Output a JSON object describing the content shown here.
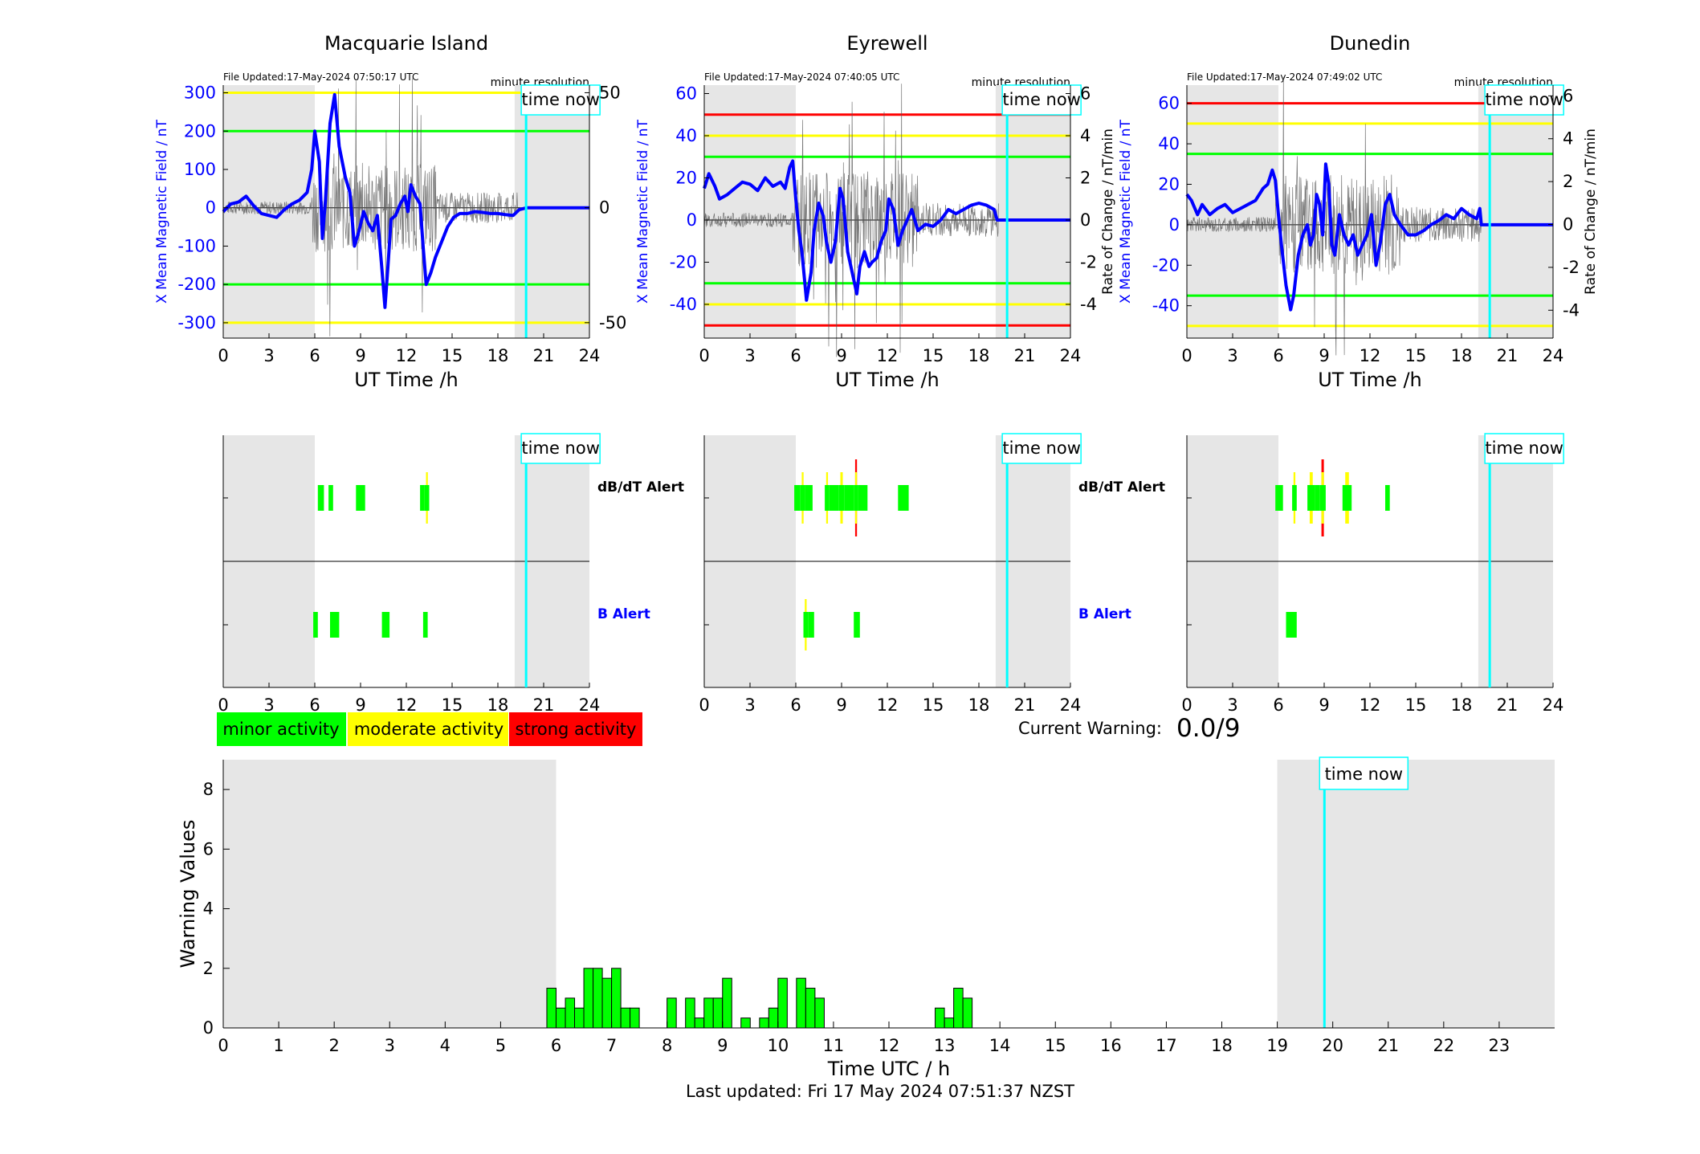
{
  "colors": {
    "shade": "#e6e6e6",
    "time_now": "#00ffff",
    "x_field": "#0000ff",
    "rate": "#000000",
    "green": "#00ff00",
    "yellow": "#ffff00",
    "red": "#ff0000",
    "axis": "#000000"
  },
  "common": {
    "file_label_prefix": "File Updated:",
    "resolution_label": "minute resolution",
    "time_now_label": "time now",
    "x_axis_title": "UT Time /h",
    "x_ticks": [
      0,
      3,
      6,
      9,
      12,
      15,
      18,
      21,
      24
    ],
    "time_now_hour": 19.85,
    "night_shade": [
      [
        0,
        6
      ],
      [
        19.1,
        24
      ]
    ],
    "y_left_label": "X Mean Magnetic Field / nT",
    "y_right_label": "Rate of Change / nT/min"
  },
  "stations": [
    {
      "name": "Macquarie Island",
      "file_updated": "17-May-2024 07:50:17 UTC",
      "show_right_label": false,
      "y_left": {
        "min": -340,
        "max": 320,
        "ticks": [
          -300,
          -200,
          -100,
          0,
          100,
          200,
          300
        ]
      },
      "y_right": {
        "min": -56.7,
        "max": 53.3,
        "ticks": [
          -50,
          0,
          50
        ]
      },
      "thresholds": [
        {
          "value": 300,
          "color": "yellow"
        },
        {
          "value": 200,
          "color": "green"
        },
        {
          "value": -200,
          "color": "green"
        },
        {
          "value": -300,
          "color": "yellow"
        }
      ],
      "x_series": [
        [
          0,
          -10
        ],
        [
          0.5,
          10
        ],
        [
          1,
          15
        ],
        [
          1.5,
          30
        ],
        [
          2,
          5
        ],
        [
          2.5,
          -15
        ],
        [
          3,
          -20
        ],
        [
          3.5,
          -25
        ],
        [
          4,
          -5
        ],
        [
          4.5,
          10
        ],
        [
          5,
          20
        ],
        [
          5.5,
          40
        ],
        [
          5.8,
          100
        ],
        [
          6,
          200
        ],
        [
          6.3,
          120
        ],
        [
          6.5,
          -80
        ],
        [
          6.7,
          20
        ],
        [
          7,
          220
        ],
        [
          7.3,
          295
        ],
        [
          7.6,
          160
        ],
        [
          8,
          80
        ],
        [
          8.3,
          40
        ],
        [
          8.6,
          -100
        ],
        [
          8.9,
          -60
        ],
        [
          9.2,
          -10
        ],
        [
          9.5,
          -40
        ],
        [
          9.8,
          -60
        ],
        [
          10.1,
          -20
        ],
        [
          10.4,
          -160
        ],
        [
          10.6,
          -260
        ],
        [
          10.8,
          -150
        ],
        [
          11,
          -30
        ],
        [
          11.3,
          -20
        ],
        [
          11.6,
          10
        ],
        [
          11.9,
          30
        ],
        [
          12.1,
          -10
        ],
        [
          12.3,
          60
        ],
        [
          12.6,
          30
        ],
        [
          12.9,
          10
        ],
        [
          13.1,
          -100
        ],
        [
          13.3,
          -200
        ],
        [
          13.6,
          -170
        ],
        [
          13.9,
          -130
        ],
        [
          14.3,
          -90
        ],
        [
          14.7,
          -50
        ],
        [
          15.1,
          -25
        ],
        [
          15.5,
          -15
        ],
        [
          16,
          -15
        ],
        [
          16.5,
          -10
        ],
        [
          17,
          -12
        ],
        [
          17.5,
          -15
        ],
        [
          18,
          -15
        ],
        [
          18.5,
          -18
        ],
        [
          19,
          -20
        ],
        [
          19.4,
          -5
        ],
        [
          19.9,
          0
        ],
        [
          24,
          0
        ]
      ],
      "d_bar": [
        [
          6.2,
          6.6,
          "g"
        ],
        [
          6.9,
          7.2,
          "g"
        ],
        [
          8.7,
          9.3,
          "g"
        ],
        [
          12.9,
          13.2,
          "g"
        ],
        [
          13.2,
          13.5,
          "gy"
        ]
      ],
      "b_bar": [
        [
          5.9,
          6.2,
          "g"
        ],
        [
          7.0,
          7.6,
          "g"
        ],
        [
          10.4,
          10.9,
          "g"
        ],
        [
          13.1,
          13.4,
          "g"
        ]
      ]
    },
    {
      "name": "Eyrewell",
      "file_updated": "17-May-2024 07:40:05 UTC",
      "show_right_label": true,
      "y_left": {
        "min": -56,
        "max": 64,
        "ticks": [
          -40,
          -20,
          0,
          20,
          40,
          60
        ]
      },
      "y_right": {
        "min": -5.6,
        "max": 6.4,
        "ticks": [
          -4,
          -2,
          0,
          2,
          4,
          6
        ]
      },
      "thresholds": [
        {
          "value": 50,
          "color": "red"
        },
        {
          "value": 40,
          "color": "yellow"
        },
        {
          "value": 30,
          "color": "green"
        },
        {
          "value": -30,
          "color": "green"
        },
        {
          "value": -40,
          "color": "yellow"
        },
        {
          "value": -50,
          "color": "red"
        }
      ],
      "x_series": [
        [
          0,
          15
        ],
        [
          0.3,
          22
        ],
        [
          0.7,
          16
        ],
        [
          1,
          10
        ],
        [
          1.5,
          12
        ],
        [
          2,
          15
        ],
        [
          2.5,
          18
        ],
        [
          3,
          17
        ],
        [
          3.5,
          14
        ],
        [
          4,
          20
        ],
        [
          4.5,
          16
        ],
        [
          5,
          18
        ],
        [
          5.3,
          15
        ],
        [
          5.6,
          25
        ],
        [
          5.8,
          28
        ],
        [
          6,
          10
        ],
        [
          6.2,
          -5
        ],
        [
          6.4,
          -15
        ],
        [
          6.7,
          -38
        ],
        [
          7,
          -25
        ],
        [
          7.2,
          -5
        ],
        [
          7.5,
          8
        ],
        [
          7.8,
          2
        ],
        [
          8,
          -10
        ],
        [
          8.3,
          -20
        ],
        [
          8.6,
          -10
        ],
        [
          8.9,
          15
        ],
        [
          9.1,
          10
        ],
        [
          9.4,
          -15
        ],
        [
          9.7,
          -25
        ],
        [
          10,
          -35
        ],
        [
          10.2,
          -22
        ],
        [
          10.5,
          -15
        ],
        [
          10.8,
          -22
        ],
        [
          11,
          -20
        ],
        [
          11.3,
          -18
        ],
        [
          11.6,
          -10
        ],
        [
          11.9,
          -5
        ],
        [
          12.1,
          10
        ],
        [
          12.4,
          5
        ],
        [
          12.7,
          -12
        ],
        [
          13,
          -5
        ],
        [
          13.3,
          0
        ],
        [
          13.6,
          5
        ],
        [
          14,
          -5
        ],
        [
          14.5,
          -2
        ],
        [
          15,
          -3
        ],
        [
          15.5,
          0
        ],
        [
          16,
          5
        ],
        [
          16.5,
          3
        ],
        [
          17,
          5
        ],
        [
          17.5,
          7
        ],
        [
          18,
          8
        ],
        [
          18.5,
          7
        ],
        [
          19,
          5
        ],
        [
          19.2,
          0
        ],
        [
          24,
          0
        ]
      ],
      "d_bar": [
        [
          5.9,
          6.3,
          "g"
        ],
        [
          6.3,
          6.6,
          "gy"
        ],
        [
          6.6,
          7.1,
          "g"
        ],
        [
          7.9,
          8.2,
          "gy"
        ],
        [
          8.2,
          8.8,
          "g"
        ],
        [
          8.8,
          9.2,
          "gy"
        ],
        [
          9.2,
          9.8,
          "g"
        ],
        [
          9.8,
          10.1,
          "gyr"
        ],
        [
          10.1,
          10.7,
          "g"
        ],
        [
          12.7,
          13.4,
          "g"
        ]
      ],
      "b_bar": [
        [
          6.5,
          6.8,
          "gy"
        ],
        [
          6.8,
          7.2,
          "g"
        ],
        [
          9.8,
          10.2,
          "g"
        ]
      ]
    },
    {
      "name": "Dunedin",
      "file_updated": "17-May-2024 07:49:02 UTC",
      "show_right_label": true,
      "y_left": {
        "min": -56,
        "max": 69,
        "ticks": [
          -40,
          -20,
          0,
          20,
          40,
          60
        ]
      },
      "y_right": {
        "min": -5.3,
        "max": 6.5,
        "ticks": [
          -4,
          -2,
          0,
          2,
          4,
          6
        ]
      },
      "thresholds": [
        {
          "value": 60,
          "color": "red"
        },
        {
          "value": 50,
          "color": "yellow"
        },
        {
          "value": 35,
          "color": "green"
        },
        {
          "value": -35,
          "color": "green"
        },
        {
          "value": -50,
          "color": "yellow"
        }
      ],
      "x_series": [
        [
          0,
          15
        ],
        [
          0.3,
          12
        ],
        [
          0.7,
          5
        ],
        [
          1,
          10
        ],
        [
          1.5,
          5
        ],
        [
          2,
          8
        ],
        [
          2.5,
          10
        ],
        [
          3,
          6
        ],
        [
          3.5,
          8
        ],
        [
          4,
          10
        ],
        [
          4.5,
          12
        ],
        [
          5,
          18
        ],
        [
          5.3,
          20
        ],
        [
          5.6,
          27
        ],
        [
          5.8,
          22
        ],
        [
          6,
          5
        ],
        [
          6.2,
          -10
        ],
        [
          6.5,
          -30
        ],
        [
          6.8,
          -42
        ],
        [
          7,
          -35
        ],
        [
          7.3,
          -15
        ],
        [
          7.6,
          -5
        ],
        [
          7.9,
          0
        ],
        [
          8.1,
          -10
        ],
        [
          8.3,
          -5
        ],
        [
          8.5,
          15
        ],
        [
          8.7,
          10
        ],
        [
          8.9,
          -5
        ],
        [
          9.1,
          30
        ],
        [
          9.3,
          20
        ],
        [
          9.5,
          -10
        ],
        [
          9.7,
          -15
        ],
        [
          10,
          5
        ],
        [
          10.3,
          -5
        ],
        [
          10.6,
          -10
        ],
        [
          10.9,
          -5
        ],
        [
          11.2,
          -15
        ],
        [
          11.5,
          -10
        ],
        [
          11.8,
          -5
        ],
        [
          12.1,
          5
        ],
        [
          12.4,
          -20
        ],
        [
          12.7,
          -8
        ],
        [
          13,
          10
        ],
        [
          13.3,
          15
        ],
        [
          13.6,
          5
        ],
        [
          14,
          0
        ],
        [
          14.5,
          -5
        ],
        [
          15,
          -5
        ],
        [
          15.5,
          -3
        ],
        [
          16,
          0
        ],
        [
          16.5,
          2
        ],
        [
          17,
          5
        ],
        [
          17.5,
          3
        ],
        [
          18,
          8
        ],
        [
          18.5,
          5
        ],
        [
          19,
          3
        ],
        [
          19.2,
          8
        ],
        [
          19.3,
          0
        ],
        [
          24,
          0
        ]
      ],
      "d_bar": [
        [
          5.8,
          6.3,
          "g"
        ],
        [
          6.9,
          7.2,
          "gy"
        ],
        [
          7.9,
          8.4,
          "gy"
        ],
        [
          8.4,
          8.7,
          "g"
        ],
        [
          8.7,
          9.1,
          "gyr"
        ],
        [
          10.2,
          10.8,
          "gy"
        ],
        [
          13.0,
          13.3,
          "g"
        ]
      ],
      "b_bar": [
        [
          6.5,
          7.2,
          "g"
        ]
      ]
    }
  ],
  "alerts": {
    "dbdt_label": "dB/dT Alert",
    "b_label": "B Alert"
  },
  "legend": {
    "minor": "minor activity",
    "moderate": "moderate activity",
    "strong": "strong activity"
  },
  "current_warning": {
    "label": "Current Warning:",
    "value": "0.0/9"
  },
  "footer": {
    "last_updated": "Last updated: Fri 17 May 2024 07:51:37 NZST"
  },
  "chart_data": {
    "type": "bar",
    "title": "",
    "xlabel": "Time UTC / h",
    "ylabel": "Warning Values",
    "xlim": [
      0,
      24
    ],
    "ylim": [
      0,
      9
    ],
    "x_ticks": [
      0,
      1,
      2,
      3,
      4,
      5,
      6,
      7,
      8,
      9,
      10,
      11,
      12,
      13,
      14,
      15,
      16,
      17,
      18,
      19,
      20,
      21,
      22,
      23
    ],
    "y_ticks": [
      0,
      2,
      4,
      6,
      8
    ],
    "bar_width_h": 0.1667,
    "time_now_hour": 19.85,
    "shaded_ranges": [
      [
        0,
        6
      ],
      [
        19,
        24
      ]
    ],
    "bars": [
      [
        5.833,
        1.333
      ],
      [
        6.0,
        0.667
      ],
      [
        6.167,
        1.0
      ],
      [
        6.333,
        0.667
      ],
      [
        6.5,
        2.0
      ],
      [
        6.667,
        2.0
      ],
      [
        6.833,
        1.667
      ],
      [
        7.0,
        2.0
      ],
      [
        7.167,
        0.667
      ],
      [
        7.333,
        0.667
      ],
      [
        8.0,
        1.0
      ],
      [
        8.333,
        1.0
      ],
      [
        8.5,
        0.333
      ],
      [
        8.667,
        1.0
      ],
      [
        8.833,
        1.0
      ],
      [
        9.0,
        1.667
      ],
      [
        9.333,
        0.333
      ],
      [
        9.667,
        0.333
      ],
      [
        9.833,
        0.667
      ],
      [
        10.0,
        1.667
      ],
      [
        10.333,
        1.667
      ],
      [
        10.5,
        1.333
      ],
      [
        10.667,
        1.0
      ],
      [
        12.833,
        0.667
      ],
      [
        13.0,
        0.333
      ],
      [
        13.167,
        1.333
      ],
      [
        13.333,
        1.0
      ]
    ]
  }
}
